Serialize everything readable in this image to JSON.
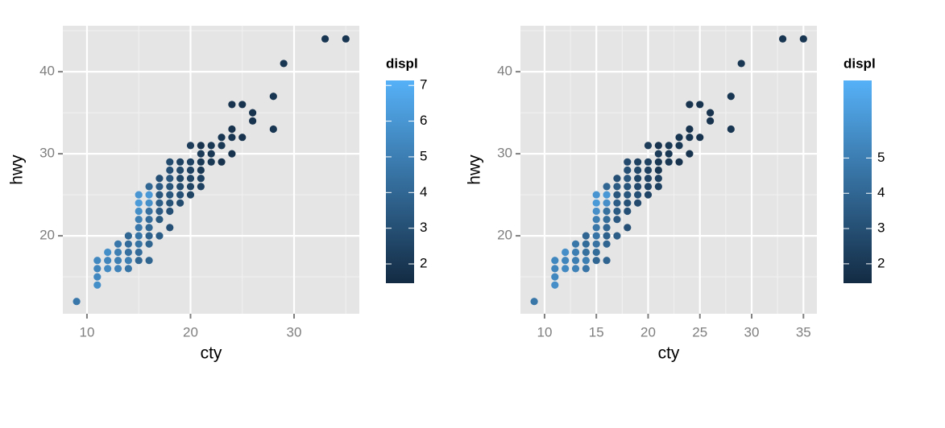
{
  "chart_data": [
    {
      "type": "scatter",
      "x_label": "cty",
      "y_label": "hwy",
      "legend_title": "displ",
      "xlim": [
        7.67,
        36.3
      ],
      "ylim": [
        10.5,
        45.6
      ],
      "xticks": [
        10,
        20,
        30
      ],
      "yticks": [
        20,
        30,
        40
      ],
      "grid": true,
      "color_low": "#132B43",
      "color_high": "#56B1F7",
      "color_lim": [
        1.46,
        7.14
      ],
      "color_ticks": [
        2,
        3,
        4,
        5,
        6,
        7
      ],
      "x": [
        9,
        11,
        11,
        11,
        11,
        12,
        12,
        12,
        13,
        13,
        13,
        13,
        14,
        14,
        14,
        14,
        14,
        15,
        15,
        15,
        15,
        15,
        15,
        15,
        15,
        15,
        16,
        16,
        16,
        16,
        16,
        16,
        16,
        16,
        16,
        17,
        17,
        17,
        17,
        17,
        17,
        17,
        18,
        18,
        18,
        18,
        18,
        18,
        18,
        18,
        19,
        19,
        19,
        19,
        19,
        19,
        20,
        20,
        20,
        20,
        20,
        20,
        21,
        21,
        21,
        21,
        21,
        21,
        22,
        22,
        22,
        23,
        23,
        23,
        24,
        24,
        24,
        24,
        25,
        25,
        26,
        26,
        28,
        28,
        29,
        33,
        35
      ],
      "values": [
        12,
        14,
        15,
        16,
        17,
        16,
        17,
        18,
        16,
        17,
        18,
        19,
        16,
        17,
        18,
        19,
        20,
        17,
        18,
        19,
        20,
        21,
        22,
        23,
        24,
        25,
        17,
        19,
        20,
        21,
        22,
        23,
        24,
        25,
        26,
        20,
        22,
        23,
        24,
        25,
        26,
        27,
        21,
        23,
        24,
        25,
        26,
        27,
        28,
        29,
        24,
        25,
        26,
        27,
        28,
        29,
        25,
        26,
        27,
        28,
        29,
        31,
        26,
        27,
        28,
        29,
        30,
        31,
        29,
        30,
        31,
        29,
        31,
        32,
        30,
        32,
        33,
        36,
        32,
        36,
        34,
        35,
        33,
        37,
        41,
        44,
        44
      ],
      "color_values": [
        4.7,
        5.7,
        5.4,
        5.3,
        5.4,
        5.5,
        5.3,
        5.7,
        5.2,
        5.0,
        5.0,
        4.7,
        4.6,
        5.0,
        4.4,
        4.2,
        4.0,
        4.0,
        4.2,
        4.5,
        4.6,
        4.7,
        5.0,
        5.7,
        6.2,
        6.0,
        3.9,
        3.9,
        3.8,
        4.0,
        4.2,
        4.4,
        5.7,
        6.1,
        4.0,
        3.6,
        3.4,
        3.5,
        3.6,
        3.3,
        3.5,
        3.0,
        3.0,
        3.0,
        3.1,
        3.3,
        3.2,
        3.3,
        3.0,
        2.8,
        2.8,
        3.0,
        2.8,
        2.6,
        2.7,
        2.4,
        2.5,
        2.5,
        2.5,
        2.4,
        2.4,
        2.2,
        2.4,
        2.4,
        2.0,
        2.0,
        2.2,
        1.8,
        2.0,
        2.0,
        2.0,
        1.8,
        2.0,
        1.9,
        1.8,
        1.9,
        1.8,
        1.8,
        1.8,
        1.8,
        1.8,
        1.8,
        1.9,
        1.9,
        1.9,
        1.9,
        1.9
      ]
    },
    {
      "type": "scatter",
      "x_label": "cty",
      "y_label": "hwy",
      "legend_title": "displ",
      "xlim": [
        7.67,
        36.3
      ],
      "ylim": [
        10.5,
        45.6
      ],
      "xticks": [
        10,
        15,
        20,
        25,
        30,
        35
      ],
      "yticks": [
        20,
        30,
        40
      ],
      "grid": true,
      "color_low": "#132B43",
      "color_high": "#56B1F7",
      "color_lim": [
        1.45,
        7.2
      ],
      "color_ticks": [
        2,
        3,
        4,
        5
      ],
      "x": [
        9,
        11,
        11,
        11,
        11,
        12,
        12,
        12,
        13,
        13,
        13,
        13,
        14,
        14,
        14,
        14,
        14,
        15,
        15,
        15,
        15,
        15,
        15,
        15,
        15,
        15,
        16,
        16,
        16,
        16,
        16,
        16,
        16,
        16,
        16,
        17,
        17,
        17,
        17,
        17,
        17,
        17,
        18,
        18,
        18,
        18,
        18,
        18,
        18,
        18,
        19,
        19,
        19,
        19,
        19,
        19,
        20,
        20,
        20,
        20,
        20,
        20,
        21,
        21,
        21,
        21,
        21,
        21,
        22,
        22,
        22,
        23,
        23,
        23,
        24,
        24,
        24,
        24,
        25,
        25,
        26,
        26,
        28,
        28,
        29,
        33,
        35
      ],
      "values": [
        12,
        14,
        15,
        16,
        17,
        16,
        17,
        18,
        16,
        17,
        18,
        19,
        16,
        17,
        18,
        19,
        20,
        17,
        18,
        19,
        20,
        21,
        22,
        23,
        24,
        25,
        17,
        19,
        20,
        21,
        22,
        23,
        24,
        25,
        26,
        20,
        22,
        23,
        24,
        25,
        26,
        27,
        21,
        23,
        24,
        25,
        26,
        27,
        28,
        29,
        24,
        25,
        26,
        27,
        28,
        29,
        25,
        26,
        27,
        28,
        29,
        31,
        26,
        27,
        28,
        29,
        30,
        31,
        29,
        30,
        31,
        29,
        31,
        32,
        30,
        32,
        33,
        36,
        32,
        36,
        34,
        35,
        33,
        37,
        41,
        44,
        44
      ],
      "color_values": [
        4.7,
        5.7,
        5.4,
        5.3,
        5.4,
        5.5,
        5.3,
        5.7,
        5.2,
        5.0,
        5.0,
        4.7,
        4.6,
        5.0,
        4.4,
        4.2,
        4.0,
        4.0,
        4.2,
        4.5,
        4.6,
        4.7,
        5.0,
        5.7,
        6.2,
        6.0,
        3.9,
        3.9,
        3.8,
        4.0,
        4.2,
        4.4,
        5.7,
        6.1,
        4.0,
        3.6,
        3.4,
        3.5,
        3.6,
        3.3,
        3.5,
        3.0,
        3.0,
        3.0,
        3.1,
        3.3,
        3.2,
        3.3,
        3.0,
        2.8,
        2.8,
        3.0,
        2.8,
        2.6,
        2.7,
        2.4,
        2.5,
        2.5,
        2.5,
        2.4,
        2.4,
        2.2,
        2.4,
        2.4,
        2.0,
        2.0,
        2.2,
        1.8,
        2.0,
        2.0,
        2.0,
        1.8,
        2.0,
        1.9,
        1.8,
        1.9,
        1.8,
        1.8,
        1.8,
        1.8,
        1.8,
        1.8,
        1.9,
        1.9,
        1.9,
        1.9,
        1.9
      ]
    }
  ]
}
